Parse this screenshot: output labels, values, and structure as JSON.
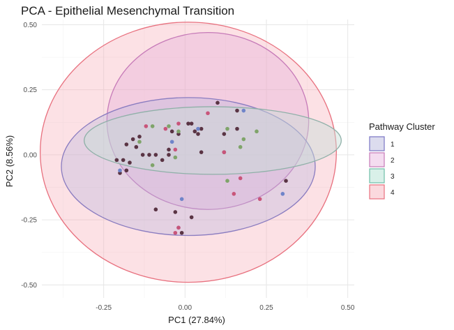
{
  "chart_data": {
    "type": "scatter",
    "title": "PCA - Epithelial Mesenchymal Transition",
    "xlabel": "PC1 (27.84%)",
    "ylabel": "PC2 (8.56%)",
    "xlim": [
      -0.44,
      0.52
    ],
    "ylim": [
      -0.55,
      0.52
    ],
    "x_ticks": [
      -0.25,
      0.0,
      0.25,
      0.5
    ],
    "x_tick_labels": [
      "-0.25",
      "0.00",
      "0.25",
      "0.50"
    ],
    "y_ticks": [
      -0.5,
      -0.25,
      0.0,
      0.25,
      0.5
    ],
    "y_tick_labels": [
      "-0.50",
      "-0.25",
      "0.00",
      "0.25",
      "0.50"
    ],
    "grid": true,
    "legend": {
      "title": "Pathway Cluster",
      "placement": "right",
      "entries": [
        {
          "label": "1",
          "border": "#7a74c4",
          "fill": "#dcdcee"
        },
        {
          "label": "2",
          "border": "#c67ab8",
          "fill": "#f4dcf0"
        },
        {
          "label": "3",
          "border": "#6fbfa8",
          "fill": "#d9f0e9"
        },
        {
          "label": "4",
          "border": "#e8707e",
          "fill": "#fbd9de"
        }
      ]
    },
    "ellipses": [
      {
        "cluster": "4",
        "cx": 0.01,
        "cy": 0.01,
        "rx": 0.455,
        "ry": 0.5,
        "stroke": "#e8707e",
        "fill": "#f7a8b4",
        "opacity": 0.35
      },
      {
        "cluster": "2",
        "cx": 0.07,
        "cy": 0.13,
        "rx": 0.31,
        "ry": 0.34,
        "stroke": "#c67ab8",
        "fill": "#e2a8d8",
        "opacity": 0.35
      },
      {
        "cluster": "1",
        "cx": 0.01,
        "cy": -0.045,
        "rx": 0.39,
        "ry": 0.265,
        "stroke": "#8a7cc0",
        "fill": "#b8b4dc",
        "opacity": 0.35
      },
      {
        "cluster": "3",
        "cx": 0.085,
        "cy": 0.055,
        "rx": 0.395,
        "ry": 0.13,
        "stroke": "#8fb0a8",
        "fill": "#c8ddd6",
        "opacity": 0.45
      }
    ],
    "points": [
      {
        "x": -0.2,
        "y": -0.07,
        "c": "#5a3444"
      },
      {
        "x": -0.21,
        "y": -0.02,
        "c": "#5a3444"
      },
      {
        "x": -0.19,
        "y": -0.02,
        "c": "#5a3444"
      },
      {
        "x": -0.17,
        "y": -0.03,
        "c": "#5a3444"
      },
      {
        "x": -0.18,
        "y": -0.06,
        "c": "#5a3444"
      },
      {
        "x": -0.18,
        "y": 0.04,
        "c": "#5a3444"
      },
      {
        "x": -0.16,
        "y": 0.06,
        "c": "#5a3444"
      },
      {
        "x": -0.14,
        "y": 0.07,
        "c": "#5a3444"
      },
      {
        "x": -0.15,
        "y": 0.03,
        "c": "#5a3444"
      },
      {
        "x": -0.13,
        "y": 0.0,
        "c": "#5a3444"
      },
      {
        "x": -0.11,
        "y": 0.0,
        "c": "#5a3444"
      },
      {
        "x": -0.09,
        "y": 0.0,
        "c": "#5a3444"
      },
      {
        "x": -0.05,
        "y": 0.02,
        "c": "#5a3444"
      },
      {
        "x": -0.04,
        "y": 0.09,
        "c": "#5a3444"
      },
      {
        "x": -0.02,
        "y": 0.08,
        "c": "#5a3444"
      },
      {
        "x": 0.01,
        "y": 0.12,
        "c": "#5a3444"
      },
      {
        "x": 0.02,
        "y": 0.12,
        "c": "#5a3444"
      },
      {
        "x": 0.03,
        "y": 0.09,
        "c": "#5a3444"
      },
      {
        "x": 0.04,
        "y": 0.08,
        "c": "#5a3444"
      },
      {
        "x": 0.05,
        "y": 0.1,
        "c": "#5a3444"
      },
      {
        "x": 0.05,
        "y": 0.01,
        "c": "#5a3444"
      },
      {
        "x": 0.1,
        "y": 0.2,
        "c": "#5a3444"
      },
      {
        "x": 0.12,
        "y": 0.08,
        "c": "#5a3444"
      },
      {
        "x": 0.12,
        "y": 0.01,
        "c": "#5a3444"
      },
      {
        "x": 0.16,
        "y": 0.17,
        "c": "#5a3444"
      },
      {
        "x": 0.16,
        "y": 0.1,
        "c": "#5a3444"
      },
      {
        "x": 0.31,
        "y": -0.1,
        "c": "#5a3444"
      },
      {
        "x": -0.07,
        "y": -0.02,
        "c": "#5a3444"
      },
      {
        "x": -0.03,
        "y": -0.22,
        "c": "#5a3444"
      },
      {
        "x": -0.01,
        "y": -0.3,
        "c": "#5a3444"
      },
      {
        "x": 0.02,
        "y": -0.24,
        "c": "#5a3444"
      },
      {
        "x": -0.09,
        "y": -0.21,
        "c": "#5a3444"
      },
      {
        "x": -0.05,
        "y": 0.0,
        "c": "#5a3444"
      },
      {
        "x": -0.2,
        "y": -0.06,
        "c": "#6f84c9"
      },
      {
        "x": -0.04,
        "y": 0.05,
        "c": "#6f84c9"
      },
      {
        "x": -0.01,
        "y": -0.17,
        "c": "#6f84c9"
      },
      {
        "x": -0.02,
        "y": -0.28,
        "c": "#6f84c9"
      },
      {
        "x": 0.04,
        "y": 0.1,
        "c": "#6f84c9"
      },
      {
        "x": 0.18,
        "y": 0.17,
        "c": "#6f84c9"
      },
      {
        "x": 0.3,
        "y": -0.15,
        "c": "#6f84c9"
      },
      {
        "x": -0.12,
        "y": 0.11,
        "c": "#c8557a"
      },
      {
        "x": -0.06,
        "y": 0.1,
        "c": "#c8557a"
      },
      {
        "x": -0.02,
        "y": 0.12,
        "c": "#c8557a"
      },
      {
        "x": 0.07,
        "y": 0.16,
        "c": "#c8557a"
      },
      {
        "x": 0.12,
        "y": 0.01,
        "c": "#c8557a"
      },
      {
        "x": 0.17,
        "y": -0.09,
        "c": "#c8557a"
      },
      {
        "x": 0.23,
        "y": -0.17,
        "c": "#c8557a"
      },
      {
        "x": -0.03,
        "y": -0.3,
        "c": "#c8557a"
      },
      {
        "x": -0.02,
        "y": -0.28,
        "c": "#c8557a"
      },
      {
        "x": -0.03,
        "y": 0.02,
        "c": "#c8557a"
      },
      {
        "x": 0.15,
        "y": -0.15,
        "c": "#c8557a"
      },
      {
        "x": -0.05,
        "y": 0.11,
        "c": "#7fa46a"
      },
      {
        "x": -0.14,
        "y": 0.05,
        "c": "#7fa46a"
      },
      {
        "x": -0.1,
        "y": 0.11,
        "c": "#7fa46a"
      },
      {
        "x": -0.1,
        "y": -0.04,
        "c": "#7fa46a"
      },
      {
        "x": -0.03,
        "y": -0.01,
        "c": "#7fa46a"
      },
      {
        "x": -0.02,
        "y": 0.09,
        "c": "#7fa46a"
      },
      {
        "x": 0.13,
        "y": 0.1,
        "c": "#7fa46a"
      },
      {
        "x": 0.17,
        "y": 0.03,
        "c": "#7fa46a"
      },
      {
        "x": 0.22,
        "y": 0.09,
        "c": "#7fa46a"
      },
      {
        "x": 0.13,
        "y": -0.1,
        "c": "#7fa46a"
      },
      {
        "x": 0.18,
        "y": 0.06,
        "c": "#7fa46a"
      }
    ]
  }
}
